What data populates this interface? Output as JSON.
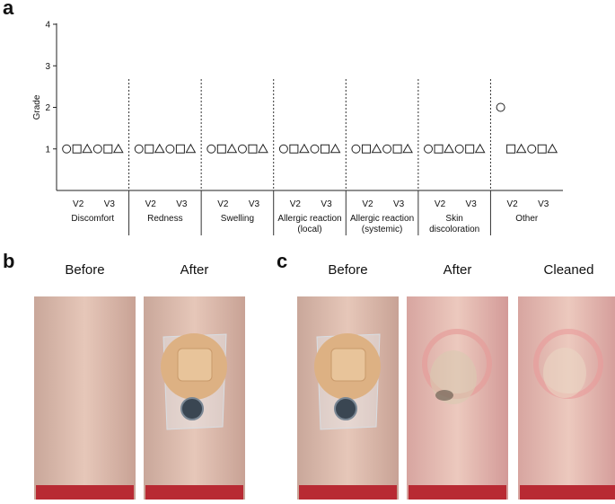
{
  "panel_a": "a",
  "chart_data": {
    "type": "dot",
    "ylabel": "Grade",
    "ylim": [
      0,
      4
    ],
    "yticks": [
      1,
      2,
      3,
      4
    ],
    "categories": [
      "V2",
      "V3",
      "V2",
      "V3",
      "V2",
      "V3",
      "V2",
      "V3",
      "V2",
      "V3",
      "V2",
      "V3",
      "V2",
      "V3"
    ],
    "groups": [
      [
        "Discomfort"
      ],
      [
        "Redness"
      ],
      [
        "Swelling"
      ],
      [
        "Allergic reaction",
        "(local)"
      ],
      [
        "Allergic reaction",
        "(systemic)"
      ],
      [
        "Skin",
        "discoloration"
      ],
      [
        "Other"
      ]
    ],
    "series": [
      {
        "marker": "circle",
        "color": "#222222",
        "values": [
          1,
          1,
          1,
          1,
          1,
          1,
          1,
          1,
          1,
          1,
          1,
          1,
          2,
          1
        ]
      },
      {
        "marker": "square",
        "color": "#222222",
        "values": [
          1,
          1,
          1,
          1,
          1,
          1,
          1,
          1,
          1,
          1,
          1,
          1,
          1,
          1
        ]
      },
      {
        "marker": "triangle",
        "color": "#222222",
        "values": [
          1,
          1,
          1,
          1,
          1,
          1,
          1,
          1,
          1,
          1,
          1,
          1,
          1,
          1
        ]
      }
    ]
  },
  "panel_b": {
    "label": "b",
    "captions": [
      "Before",
      "After"
    ]
  },
  "panel_c": {
    "label": "c",
    "captions": [
      "Before",
      "After",
      "Cleaned"
    ]
  }
}
